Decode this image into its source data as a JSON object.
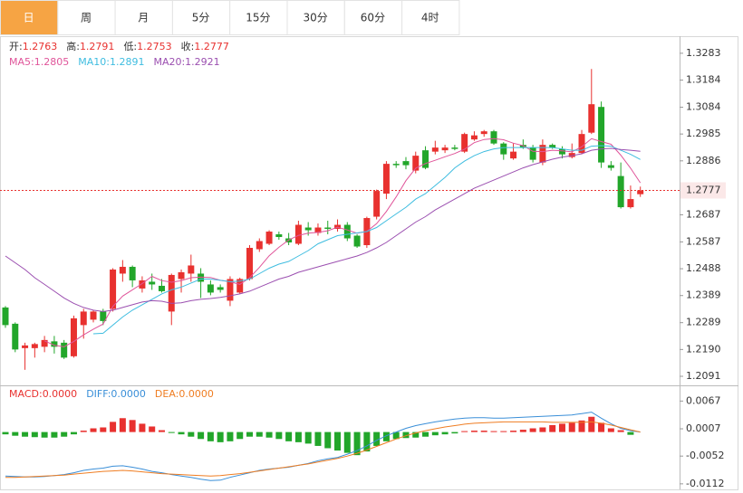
{
  "tabs": [
    {
      "label": "日",
      "active": true
    },
    {
      "label": "周",
      "active": false
    },
    {
      "label": "月",
      "active": false
    },
    {
      "label": "5分",
      "active": false
    },
    {
      "label": "15分",
      "active": false
    },
    {
      "label": "30分",
      "active": false
    },
    {
      "label": "60分",
      "active": false
    },
    {
      "label": "4时",
      "active": false
    }
  ],
  "chart_data": [
    {
      "type": "candlestick",
      "up_color": "#e8312f",
      "down_color": "#22a62a",
      "last_price": 1.2777,
      "last_price_color": "#e8312f",
      "ohlc_legend": [
        {
          "label": "开:",
          "value": 1.2763
        },
        {
          "label": "高:",
          "value": 1.2791
        },
        {
          "label": "低:",
          "value": 1.2753
        },
        {
          "label": "收:",
          "value": 1.2777
        }
      ],
      "ylim": [
        1.2061,
        1.3346
      ],
      "yticks": [
        1.3283,
        1.3184,
        1.3084,
        1.2985,
        1.2886,
        1.2687,
        1.2587,
        1.2488,
        1.2389,
        1.2289,
        {
          "value": 1.219,
          "label": "1.2190"
        },
        1.2091
      ],
      "open": [
        1.2345,
        1.2285,
        1.2195,
        1.2195,
        1.22,
        1.222,
        1.2215,
        1.2165,
        1.228,
        1.23,
        1.233,
        1.234,
        1.247,
        1.2495,
        1.2415,
        1.244,
        1.2425,
        1.233,
        1.245,
        1.247,
        1.247,
        1.243,
        1.242,
        1.237,
        1.24,
        1.245,
        1.256,
        1.258,
        1.2615,
        1.26,
        1.258,
        1.264,
        1.262,
        1.264,
        1.2635,
        1.265,
        1.261,
        1.2575,
        1.268,
        1.2765,
        1.2875,
        1.2885,
        1.285,
        1.2925,
        1.292,
        1.2925,
        1.2935,
        1.292,
        1.2965,
        1.2985,
        1.2995,
        1.295,
        1.2895,
        1.2945,
        1.2935,
        1.288,
        1.2945,
        1.293,
        1.29,
        1.2915,
        1.299,
        1.3085,
        1.287,
        1.283,
        1.2715,
        1.2763
      ],
      "high": [
        1.235,
        1.229,
        1.2215,
        1.2215,
        1.224,
        1.224,
        1.2225,
        1.2315,
        1.234,
        1.2335,
        1.234,
        1.249,
        1.252,
        1.25,
        1.246,
        1.247,
        1.245,
        1.247,
        1.2485,
        1.254,
        1.249,
        1.2445,
        1.243,
        1.246,
        1.2455,
        1.2575,
        1.26,
        1.263,
        1.2625,
        1.262,
        1.2665,
        1.266,
        1.2655,
        1.2665,
        1.267,
        1.266,
        1.2615,
        1.268,
        1.278,
        1.2885,
        1.2885,
        1.29,
        1.292,
        1.294,
        1.296,
        1.2945,
        1.2945,
        1.299,
        1.2995,
        1.3,
        1.3,
        1.2955,
        1.295,
        1.2965,
        1.2945,
        1.2965,
        1.295,
        1.294,
        1.295,
        1.3,
        1.3225,
        1.3105,
        1.2885,
        1.288,
        1.2795,
        1.2791
      ],
      "low": [
        1.227,
        1.218,
        1.2115,
        1.216,
        1.218,
        1.2175,
        1.2155,
        1.216,
        1.223,
        1.229,
        1.228,
        1.233,
        1.244,
        1.242,
        1.24,
        1.241,
        1.24,
        1.228,
        1.24,
        1.244,
        1.238,
        1.239,
        1.24,
        1.235,
        1.2395,
        1.2445,
        1.255,
        1.2575,
        1.2595,
        1.2575,
        1.2575,
        1.261,
        1.261,
        1.2615,
        1.2625,
        1.259,
        1.2565,
        1.2565,
        1.267,
        1.2745,
        1.286,
        1.2855,
        1.284,
        1.2855,
        1.291,
        1.2915,
        1.2925,
        1.2915,
        1.296,
        1.2975,
        1.2945,
        1.289,
        1.289,
        1.293,
        1.288,
        1.287,
        1.293,
        1.2895,
        1.2895,
        1.291,
        1.2985,
        1.286,
        1.285,
        1.271,
        1.271,
        1.2753
      ],
      "close": [
        1.228,
        1.219,
        1.2205,
        1.221,
        1.2225,
        1.22,
        1.216,
        1.2305,
        1.233,
        1.233,
        1.2295,
        1.2485,
        1.2495,
        1.2445,
        1.2445,
        1.243,
        1.2405,
        1.2465,
        1.2475,
        1.25,
        1.244,
        1.24,
        1.241,
        1.245,
        1.245,
        1.2565,
        1.259,
        1.2625,
        1.2605,
        1.2585,
        1.265,
        1.263,
        1.264,
        1.2635,
        1.265,
        1.26,
        1.257,
        1.2675,
        1.2775,
        1.2875,
        1.287,
        1.287,
        1.2905,
        1.286,
        1.2935,
        1.2935,
        1.293,
        1.2985,
        1.298,
        1.2995,
        1.295,
        1.291,
        1.292,
        1.2935,
        1.289,
        1.2945,
        1.2935,
        1.291,
        1.2915,
        1.2985,
        1.3095,
        1.288,
        1.286,
        1.2715,
        1.2745,
        1.2777
      ],
      "series": [
        {
          "name": "MA5:",
          "color": "#e0559a",
          "legend_value": 1.2805,
          "values": [
            null,
            null,
            null,
            null,
            1.2222,
            1.2206,
            1.22,
            1.222,
            1.2244,
            1.2265,
            1.2284,
            1.2349,
            1.2387,
            1.241,
            1.2433,
            1.246,
            1.2444,
            1.2438,
            1.2444,
            1.2455,
            1.2457,
            1.2456,
            1.2445,
            1.244,
            1.243,
            1.2455,
            1.2493,
            1.2536,
            1.2567,
            1.2594,
            1.2611,
            1.2619,
            1.2622,
            1.2628,
            1.2641,
            1.2631,
            1.2619,
            1.2626,
            1.2654,
            1.2699,
            1.2753,
            1.2813,
            1.2859,
            1.2876,
            1.2888,
            1.2901,
            1.2913,
            1.2929,
            1.2953,
            1.2965,
            1.2968,
            1.2964,
            1.2951,
            1.2942,
            1.2921,
            1.292,
            1.2925,
            1.2923,
            1.2919,
            1.2938,
            1.2968,
            1.2957,
            1.2947,
            1.2907,
            1.2859,
            1.2805
          ]
        },
        {
          "name": "MA10:",
          "color": "#3fbde0",
          "legend_value": 1.2891,
          "values": [
            null,
            null,
            null,
            null,
            null,
            null,
            null,
            null,
            null,
            1.2248,
            1.225,
            1.228,
            1.231,
            1.2335,
            1.2355,
            1.2375,
            1.2395,
            1.241,
            1.242,
            1.2435,
            1.245,
            1.245,
            1.2445,
            1.244,
            1.2442,
            1.245,
            1.247,
            1.249,
            1.2505,
            1.2515,
            1.2535,
            1.2555,
            1.258,
            1.2595,
            1.261,
            1.2615,
            1.262,
            1.2625,
            1.264,
            1.2665,
            1.269,
            1.2715,
            1.2745,
            1.2765,
            1.2795,
            1.2825,
            1.286,
            1.2885,
            1.2905,
            1.292,
            1.293,
            1.2935,
            1.2935,
            1.2935,
            1.2935,
            1.2935,
            1.2935,
            1.293,
            1.2925,
            1.2925,
            1.294,
            1.2942,
            1.294,
            1.2925,
            1.291,
            1.2891
          ]
        },
        {
          "name": "MA20:",
          "color": "#9b4fb0",
          "legend_value": 1.2921,
          "values": [
            1.2535,
            1.251,
            1.2485,
            1.2455,
            1.243,
            1.2405,
            1.238,
            1.236,
            1.2345,
            1.2335,
            1.233,
            1.2335,
            1.2345,
            1.2355,
            1.2365,
            1.237,
            1.2368,
            1.236,
            1.2362,
            1.237,
            1.2375,
            1.2378,
            1.2382,
            1.2388,
            1.2395,
            1.2405,
            1.242,
            1.2435,
            1.245,
            1.246,
            1.2475,
            1.2485,
            1.2495,
            1.2505,
            1.2515,
            1.2525,
            1.2535,
            1.2548,
            1.2565,
            1.2585,
            1.261,
            1.2635,
            1.266,
            1.268,
            1.2705,
            1.2725,
            1.2745,
            1.2765,
            1.2785,
            1.28,
            1.2815,
            1.283,
            1.2845,
            1.286,
            1.2872,
            1.2882,
            1.2892,
            1.29,
            1.2905,
            1.2912,
            1.2925,
            1.293,
            1.2932,
            1.2928,
            1.2925,
            1.2921
          ]
        }
      ]
    },
    {
      "type": "macd",
      "ylim": [
        -0.0124,
        0.0099
      ],
      "yticks": [
        0.0067,
        0.0007,
        -0.0052,
        -0.0112
      ],
      "histogram": {
        "name": "MACD:",
        "legend_value": "0.0000",
        "color": "#e8312f",
        "up_color": "#e8312f",
        "down_color": "#22a62a",
        "values": [
          -0.0005,
          -0.0008,
          -0.001,
          -0.0011,
          -0.0012,
          -0.0012,
          -0.001,
          -0.0005,
          0.0003,
          0.0008,
          0.001,
          0.0022,
          0.003,
          0.0026,
          0.0018,
          0.0012,
          0.0004,
          -0.0002,
          -0.0005,
          -0.001,
          -0.0015,
          -0.002,
          -0.0022,
          -0.002,
          -0.0015,
          -0.001,
          -0.001,
          -0.0012,
          -0.0015,
          -0.002,
          -0.0022,
          -0.0025,
          -0.003,
          -0.0035,
          -0.004,
          -0.0045,
          -0.005,
          -0.0042,
          -0.003,
          -0.002,
          -0.0015,
          -0.0013,
          -0.0012,
          -0.001,
          -0.0007,
          -0.0005,
          -0.0003,
          0.0002,
          0.0003,
          0.0003,
          0.0002,
          0.0002,
          0.0003,
          0.0005,
          0.0008,
          0.001,
          0.0015,
          0.0018,
          0.002,
          0.0025,
          0.0033,
          0.002,
          0.0008,
          0.0004,
          -0.0006,
          0.0
        ]
      },
      "series": [
        {
          "name": "DIFF:",
          "color": "#3a8fd8",
          "legend_value": "0.0000",
          "values": [
            -0.0095,
            -0.0096,
            -0.0097,
            -0.0097,
            -0.0096,
            -0.0094,
            -0.0092,
            -0.0088,
            -0.0083,
            -0.008,
            -0.0078,
            -0.0074,
            -0.0073,
            -0.0076,
            -0.008,
            -0.0085,
            -0.0088,
            -0.0092,
            -0.0095,
            -0.0098,
            -0.0102,
            -0.0105,
            -0.0104,
            -0.0098,
            -0.0093,
            -0.0088,
            -0.0083,
            -0.008,
            -0.0078,
            -0.0076,
            -0.0072,
            -0.0068,
            -0.0062,
            -0.0058,
            -0.0055,
            -0.0048,
            -0.004,
            -0.003,
            -0.0018,
            -0.0008,
            0.0,
            0.0008,
            0.0014,
            0.0018,
            0.0022,
            0.0025,
            0.0028,
            0.003,
            0.0031,
            0.0031,
            0.003,
            0.003,
            0.0031,
            0.0032,
            0.0033,
            0.0034,
            0.0035,
            0.0036,
            0.0037,
            0.004,
            0.0043,
            0.003,
            0.0018,
            0.0008,
            0.0003,
            0.0
          ]
        },
        {
          "name": "DEA:",
          "color": "#ef7d22",
          "legend_value": "0.0000",
          "values": [
            -0.0098,
            -0.0098,
            -0.0097,
            -0.0096,
            -0.0095,
            -0.0094,
            -0.0093,
            -0.0091,
            -0.0089,
            -0.0087,
            -0.0085,
            -0.0084,
            -0.0083,
            -0.0084,
            -0.0086,
            -0.0088,
            -0.009,
            -0.0091,
            -0.0092,
            -0.0093,
            -0.0094,
            -0.0095,
            -0.0094,
            -0.0092,
            -0.009,
            -0.0087,
            -0.0084,
            -0.0081,
            -0.0078,
            -0.0075,
            -0.0072,
            -0.0069,
            -0.0065,
            -0.0061,
            -0.0057,
            -0.0052,
            -0.0046,
            -0.0039,
            -0.0031,
            -0.0023,
            -0.0015,
            -0.0008,
            -0.0002,
            0.0003,
            0.0007,
            0.0011,
            0.0014,
            0.0017,
            0.0019,
            0.002,
            0.0021,
            0.0022,
            0.0022,
            0.0022,
            0.0022,
            0.0022,
            0.0021,
            0.0021,
            0.0021,
            0.0021,
            0.0022,
            0.0019,
            0.0015,
            0.001,
            0.0005,
            0.0
          ]
        }
      ]
    }
  ]
}
